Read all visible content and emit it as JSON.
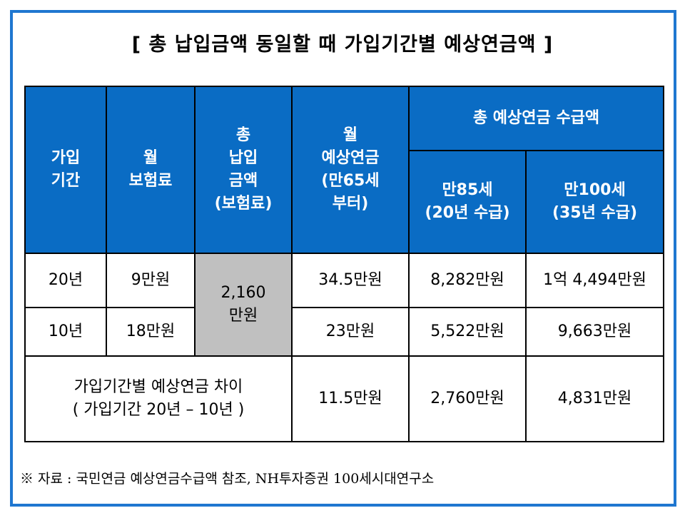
{
  "title": "[ 총 납입금액 동일할 때 가입기간별 예상연금액 ]",
  "table": {
    "headers": {
      "period": [
        "가입",
        "기간"
      ],
      "premium": [
        "월",
        "보험료"
      ],
      "total_paid": [
        "총",
        "납입",
        "금액",
        "(보험료)"
      ],
      "monthly_pension": [
        "월",
        "예상연금",
        "(만65세",
        "부터)"
      ],
      "total_pension_group": "총 예상연금 수급액",
      "age85": [
        "만85세",
        "(20년 수급)"
      ],
      "age100": [
        "만100세",
        "(35년 수급)"
      ]
    },
    "rows": [
      {
        "period": "20년",
        "premium": "9만원",
        "monthly_pension": "34.5만원",
        "age85": "8,282만원",
        "age100": "1억 4,494만원"
      },
      {
        "period": "10년",
        "premium": "18만원",
        "monthly_pension": "23만원",
        "age85": "5,522만원",
        "age100": "9,663만원"
      }
    ],
    "total_paid_merged": [
      "2,160",
      "만원"
    ],
    "difference_row": {
      "label": [
        "가입기간별 예상연금 차이",
        "( 가입기간 20년 – 10년 )"
      ],
      "monthly_pension": "11.5만원",
      "age85": "2,760만원",
      "age100": "4,831만원"
    }
  },
  "source": "※ 자료 : 국민연금 예상연금수급액 참조, NH투자증권 100세시대연구소",
  "colors": {
    "frame": "#1f77d0",
    "header_bg": "#0a6cc4",
    "merged_cell_bg": "#c0c0c0"
  }
}
